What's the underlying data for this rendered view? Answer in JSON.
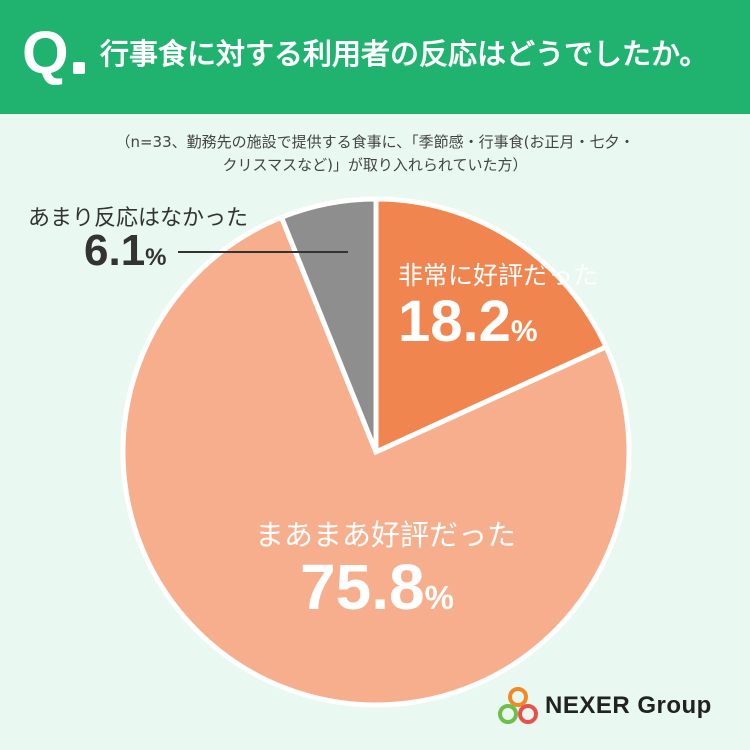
{
  "header": {
    "q_label": "Q",
    "title": "行事食に対する利用者の反応はどうでしたか。"
  },
  "note": {
    "line1": "（n=33、勤務先の施設で提供する食事に、「季節感・行事食(お正月・七夕・",
    "line2": "クリスマスなど)」が取り入れられていた方）"
  },
  "chart_data": {
    "type": "pie",
    "start": "12 o'clock, clockwise",
    "slices": [
      {
        "label": "非常に好評だった",
        "value": 18.2,
        "display": "18.2",
        "color": "#f08550"
      },
      {
        "label": "まあまあ好評だった",
        "value": 75.8,
        "display": "75.8",
        "color": "#f6ae8c"
      },
      {
        "label": "あまり反応はなかった",
        "value": 6.1,
        "display": "6.1",
        "color": "#8e8e8e"
      }
    ],
    "unit": "%",
    "slice_border_color": "#ffffff"
  },
  "logo": {
    "text": "NEXER Group",
    "ring_colors": [
      "#f08a24",
      "#6cc04a",
      "#e8504a"
    ]
  }
}
